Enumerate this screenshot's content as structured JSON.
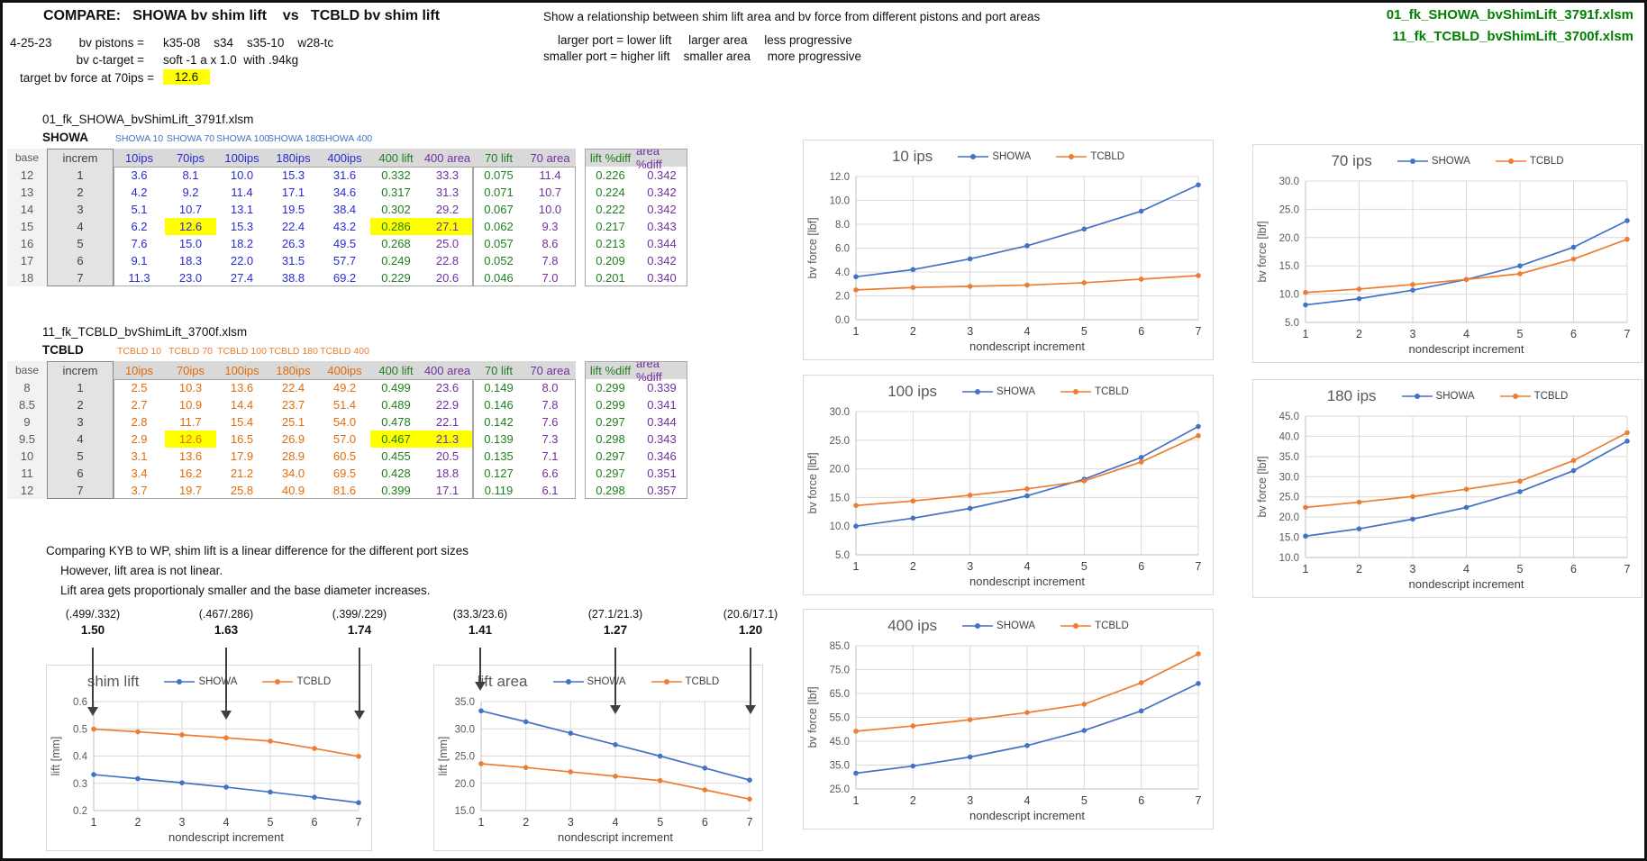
{
  "page": {
    "title": "COMPARE:   SHOWA bv shim lift    vs   TCBLD bv shim lift",
    "date": "4-25-23",
    "pistons_label": "bv pistons =",
    "pistons_value": "k35-08    s34    s35-10    w28-tc",
    "ctarget_label": "bv c-target =",
    "ctarget_value": "soft -1 a x 1.0  with .94kg",
    "target_label": "target bv force at 70ips =",
    "target_value": "12.6",
    "description": "Show a relationship between shim lift area and bv force from different pistons and port areas",
    "rule_larger": "larger port = lower lift     larger area     less progressive",
    "rule_smaller": "smaller port = higher lift    smaller area     more progressive",
    "file_showa": "01_fk_SHOWA_bvShimLift_3791f.xlsm",
    "file_tcbld": "11_fk_TCBLD_bvShimLift_3700f.xlsm"
  },
  "notes": {
    "line1": "Comparing KYB to WP, shim lift is a linear difference for the different port sizes",
    "line2": "However, lift area is not linear.",
    "line3": "Lift area gets proportionaly smaller and the base diameter increases."
  },
  "annotations": [
    {
      "formula": "(.499/.332)",
      "ratio": "1.50"
    },
    {
      "formula": "(.467/.286)",
      "ratio": "1.63"
    },
    {
      "formula": "(.399/.229)",
      "ratio": "1.74"
    },
    {
      "formula": "(33.3/23.6)",
      "ratio": "1.41"
    },
    {
      "formula": "(27.1/21.3)",
      "ratio": "1.27"
    },
    {
      "formula": "(20.6/17.1)",
      "ratio": "1.20"
    }
  ],
  "tables": [
    {
      "id": "showa",
      "title": "01_fk_SHOWA_bvShimLift_3791f.xlsm",
      "brand": "SHOWA",
      "series_labels": [
        "SHOWA 10",
        "SHOWA 70",
        "SHOWA 100",
        "SHOWA 180",
        "SHOWA 400"
      ],
      "label_color": "#4472C4",
      "ips_color": "#2a2ad2",
      "columns": [
        "base",
        "increm",
        "10ips",
        "70ips",
        "100ips",
        "180ips",
        "400ips",
        "400 lift",
        "400 area",
        "70 lift",
        "70 area",
        "lift %diff",
        "area %diff"
      ],
      "rows": [
        [
          "12",
          "1",
          "3.6",
          "8.1",
          "10.0",
          "15.3",
          "31.6",
          "0.332",
          "33.3",
          "0.075",
          "11.4",
          "0.226",
          "0.342"
        ],
        [
          "13",
          "2",
          "4.2",
          "9.2",
          "11.4",
          "17.1",
          "34.6",
          "0.317",
          "31.3",
          "0.071",
          "10.7",
          "0.224",
          "0.342"
        ],
        [
          "14",
          "3",
          "5.1",
          "10.7",
          "13.1",
          "19.5",
          "38.4",
          "0.302",
          "29.2",
          "0.067",
          "10.0",
          "0.222",
          "0.342"
        ],
        [
          "15",
          "4",
          "6.2",
          "12.6",
          "15.3",
          "22.4",
          "43.2",
          "0.286",
          "27.1",
          "0.062",
          "9.3",
          "0.217",
          "0.343"
        ],
        [
          "16",
          "5",
          "7.6",
          "15.0",
          "18.2",
          "26.3",
          "49.5",
          "0.268",
          "25.0",
          "0.057",
          "8.6",
          "0.213",
          "0.344"
        ],
        [
          "17",
          "6",
          "9.1",
          "18.3",
          "22.0",
          "31.5",
          "57.7",
          "0.249",
          "22.8",
          "0.052",
          "7.8",
          "0.209",
          "0.342"
        ],
        [
          "18",
          "7",
          "11.3",
          "23.0",
          "27.4",
          "38.8",
          "69.2",
          "0.229",
          "20.6",
          "0.046",
          "7.0",
          "0.201",
          "0.340"
        ]
      ],
      "highlights": [
        [
          3,
          3
        ],
        [
          3,
          7
        ],
        [
          3,
          8
        ]
      ]
    },
    {
      "id": "tcbld",
      "title": "11_fk_TCBLD_bvShimLift_3700f.xlsm",
      "brand": "TCBLD",
      "series_labels": [
        "TCBLD 10",
        "TCBLD 70",
        "TCBLD 100",
        "TCBLD 180",
        "TCBLD 400"
      ],
      "label_color": "#ED7D31",
      "ips_color": "#E36C0A",
      "columns": [
        "base",
        "increm",
        "10ips",
        "70ips",
        "100ips",
        "180ips",
        "400ips",
        "400 lift",
        "400 area",
        "70 lift",
        "70 area",
        "lift %diff",
        "area %diff"
      ],
      "rows": [
        [
          "8",
          "1",
          "2.5",
          "10.3",
          "13.6",
          "22.4",
          "49.2",
          "0.499",
          "23.6",
          "0.149",
          "8.0",
          "0.299",
          "0.339"
        ],
        [
          "8.5",
          "2",
          "2.7",
          "10.9",
          "14.4",
          "23.7",
          "51.4",
          "0.489",
          "22.9",
          "0.146",
          "7.8",
          "0.299",
          "0.341"
        ],
        [
          "9",
          "3",
          "2.8",
          "11.7",
          "15.4",
          "25.1",
          "54.0",
          "0.478",
          "22.1",
          "0.142",
          "7.6",
          "0.297",
          "0.344"
        ],
        [
          "9.5",
          "4",
          "2.9",
          "12.6",
          "16.5",
          "26.9",
          "57.0",
          "0.467",
          "21.3",
          "0.139",
          "7.3",
          "0.298",
          "0.343"
        ],
        [
          "10",
          "5",
          "3.1",
          "13.6",
          "17.9",
          "28.9",
          "60.5",
          "0.455",
          "20.5",
          "0.135",
          "7.1",
          "0.297",
          "0.346"
        ],
        [
          "11",
          "6",
          "3.4",
          "16.2",
          "21.2",
          "34.0",
          "69.5",
          "0.428",
          "18.8",
          "0.127",
          "6.6",
          "0.297",
          "0.351"
        ],
        [
          "12",
          "7",
          "3.7",
          "19.7",
          "25.8",
          "40.9",
          "81.6",
          "0.399",
          "17.1",
          "0.119",
          "6.1",
          "0.298",
          "0.357"
        ]
      ],
      "highlights": [
        [
          3,
          3
        ],
        [
          3,
          7
        ],
        [
          3,
          8
        ]
      ]
    }
  ],
  "chart_data": [
    {
      "type": "line",
      "title": "10 ips",
      "xlabel": "nondescript increment",
      "ylabel": "bv force  [lbf]",
      "x": [
        1,
        2,
        3,
        4,
        5,
        6,
        7
      ],
      "ylim": [
        0,
        12
      ],
      "ystep": 2,
      "grid": true,
      "legend_position": "top",
      "series": [
        {
          "name": "SHOWA",
          "values": [
            3.6,
            4.2,
            5.1,
            6.2,
            7.6,
            9.1,
            11.3
          ]
        },
        {
          "name": "TCBLD",
          "values": [
            2.5,
            2.7,
            2.8,
            2.9,
            3.1,
            3.4,
            3.7
          ]
        }
      ]
    },
    {
      "type": "line",
      "title": "70 ips",
      "xlabel": "nondescript increment",
      "ylabel": "bv force  [lbf]",
      "x": [
        1,
        2,
        3,
        4,
        5,
        6,
        7
      ],
      "ylim": [
        5,
        30
      ],
      "ystep": 5,
      "grid": true,
      "legend_position": "top",
      "series": [
        {
          "name": "SHOWA",
          "values": [
            8.1,
            9.2,
            10.7,
            12.6,
            15.0,
            18.3,
            23.0
          ]
        },
        {
          "name": "TCBLD",
          "values": [
            10.3,
            10.9,
            11.7,
            12.6,
            13.6,
            16.2,
            19.7
          ]
        }
      ]
    },
    {
      "type": "line",
      "title": "100 ips",
      "xlabel": "nondescript increment",
      "ylabel": "bv force  [lbf]",
      "x": [
        1,
        2,
        3,
        4,
        5,
        6,
        7
      ],
      "ylim": [
        5,
        30
      ],
      "ystep": 5,
      "grid": true,
      "legend_position": "top",
      "series": [
        {
          "name": "SHOWA",
          "values": [
            10.0,
            11.4,
            13.1,
            15.3,
            18.2,
            22.0,
            27.4
          ]
        },
        {
          "name": "TCBLD",
          "values": [
            13.6,
            14.4,
            15.4,
            16.5,
            17.9,
            21.2,
            25.8
          ]
        }
      ]
    },
    {
      "type": "line",
      "title": "180 ips",
      "xlabel": "nondescript increment",
      "ylabel": "bv force  [lbf]",
      "x": [
        1,
        2,
        3,
        4,
        5,
        6,
        7
      ],
      "ylim": [
        10,
        45
      ],
      "ystep": 5,
      "grid": true,
      "legend_position": "top",
      "series": [
        {
          "name": "SHOWA",
          "values": [
            15.3,
            17.1,
            19.5,
            22.4,
            26.3,
            31.5,
            38.8
          ]
        },
        {
          "name": "TCBLD",
          "values": [
            22.4,
            23.7,
            25.1,
            26.9,
            28.9,
            34.0,
            40.9
          ]
        }
      ]
    },
    {
      "type": "line",
      "title": "400 ips",
      "xlabel": "nondescript increment",
      "ylabel": "bv force  [lbf]",
      "x": [
        1,
        2,
        3,
        4,
        5,
        6,
        7
      ],
      "ylim": [
        25,
        85
      ],
      "ystep": 10,
      "grid": true,
      "legend_position": "top",
      "series": [
        {
          "name": "SHOWA",
          "values": [
            31.6,
            34.6,
            38.4,
            43.2,
            49.5,
            57.7,
            69.2
          ]
        },
        {
          "name": "TCBLD",
          "values": [
            49.2,
            51.4,
            54.0,
            57.0,
            60.5,
            69.5,
            81.6
          ]
        }
      ]
    },
    {
      "type": "line",
      "title": "shim lift",
      "xlabel": "nondescript increment",
      "ylabel": "lift  [mm]",
      "x": [
        1,
        2,
        3,
        4,
        5,
        6,
        7
      ],
      "ylim": [
        0.2,
        0.6
      ],
      "ystep": 0.1,
      "grid": true,
      "legend_position": "top",
      "series": [
        {
          "name": "SHOWA",
          "values": [
            0.332,
            0.317,
            0.302,
            0.286,
            0.268,
            0.249,
            0.229
          ]
        },
        {
          "name": "TCBLD",
          "values": [
            0.499,
            0.489,
            0.478,
            0.467,
            0.455,
            0.428,
            0.399
          ]
        }
      ]
    },
    {
      "type": "line",
      "title": "lift area",
      "xlabel": "nondescript increment",
      "ylabel": "lift  [mm]",
      "x": [
        1,
        2,
        3,
        4,
        5,
        6,
        7
      ],
      "ylim": [
        15,
        35
      ],
      "ystep": 5,
      "grid": true,
      "legend_position": "top",
      "series": [
        {
          "name": "SHOWA",
          "values": [
            33.3,
            31.3,
            29.2,
            27.1,
            25.0,
            22.8,
            20.6
          ]
        },
        {
          "name": "TCBLD",
          "values": [
            23.6,
            22.9,
            22.1,
            21.3,
            20.5,
            18.8,
            17.1
          ]
        }
      ]
    }
  ],
  "colors": {
    "showa_series": "#4472C4",
    "tcbld_series": "#ED7D31",
    "highlight": "#FFFF00",
    "filename_green": "#008000",
    "lift_green": "#1f7f1f",
    "area_purple": "#7030A0"
  }
}
